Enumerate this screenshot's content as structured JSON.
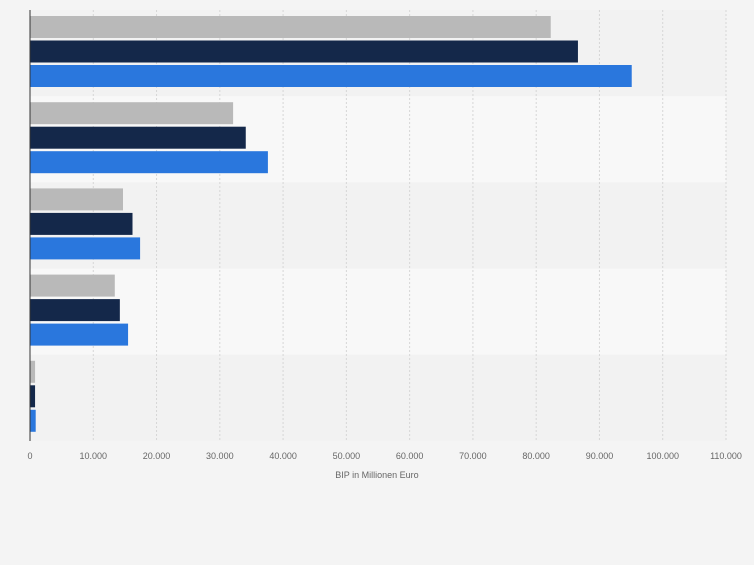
{
  "chart_data": {
    "type": "bar",
    "orientation": "horizontal",
    "categories": [
      "",
      "",
      "",
      "",
      ""
    ],
    "series": [
      {
        "color": "#b9b9b9",
        "values": [
          82300,
          32100,
          14700,
          13400,
          800
        ]
      },
      {
        "color": "#14284a",
        "values": [
          86600,
          34100,
          16200,
          14200,
          800
        ]
      },
      {
        "color": "#2a77dd",
        "values": [
          95100,
          37600,
          17400,
          15500,
          900
        ]
      }
    ],
    "xlabel": "BIP in Millionen Euro",
    "ylabel": "",
    "xlim": [
      0,
      110000
    ],
    "x_ticks": [
      0,
      10000,
      20000,
      30000,
      40000,
      50000,
      60000,
      70000,
      80000,
      90000,
      100000,
      110000
    ],
    "x_tick_labels": [
      "0",
      "10.000",
      "20.000",
      "30.000",
      "40.000",
      "50.000",
      "60.000",
      "70.000",
      "80.000",
      "90.000",
      "100.000",
      "110.000"
    ],
    "grid": true,
    "legend": "none"
  },
  "colors": {
    "background": "#f4f4f4",
    "band_dark": "#f2f2f2",
    "band_light": "#f8f8f8",
    "grid": "#d6d6d6",
    "axis": "#333333",
    "tick_text": "#666666"
  }
}
